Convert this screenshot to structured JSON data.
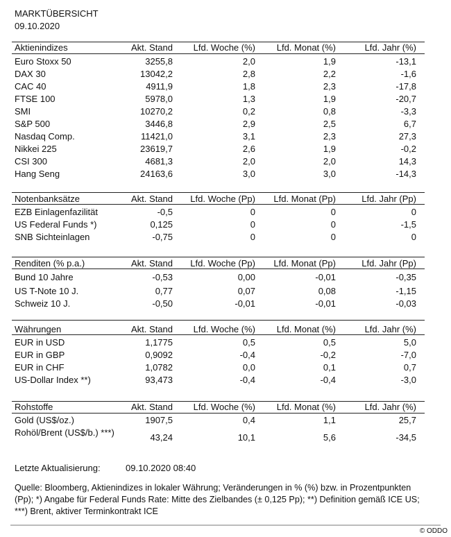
{
  "title": "MARKTÜBERSICHT",
  "date": "09.10.2020",
  "tables": [
    {
      "headers": [
        "Aktienindizes",
        "Akt. Stand",
        "Lfd. Woche (%)",
        "Lfd. Monat (%)",
        "Lfd. Jahr (%)"
      ],
      "rows": [
        [
          "Euro Stoxx 50",
          "3255,8",
          "2,0",
          "1,9",
          "-13,1"
        ],
        [
          "DAX 30",
          "13042,2",
          "2,8",
          "2,2",
          "-1,6"
        ],
        [
          "CAC 40",
          "4911,9",
          "1,8",
          "2,3",
          "-17,8"
        ],
        [
          "FTSE 100",
          "5978,0",
          "1,3",
          "1,9",
          "-20,7"
        ],
        [
          "SMI",
          "10270,2",
          "0,2",
          "0,8",
          "-3,3"
        ],
        [
          "S&P 500",
          "3446,8",
          "2,9",
          "2,5",
          "6,7"
        ],
        [
          "Nasdaq Comp.",
          "11421,0",
          "3,1",
          "2,3",
          "27,3"
        ],
        [
          "Nikkei 225",
          "23619,7",
          "2,6",
          "1,9",
          "-0,2"
        ],
        [
          "CSI 300",
          "4681,3",
          "2,0",
          "2,0",
          "14,3"
        ],
        [
          "Hang Seng",
          "24163,6",
          "3,0",
          "3,0",
          "-14,3"
        ]
      ]
    },
    {
      "headers": [
        "Notenbanksätze",
        "Akt. Stand",
        "Lfd. Woche (Pp)",
        "Lfd. Monat (Pp)",
        "Lfd. Jahr (Pp)"
      ],
      "rows": [
        [
          "EZB Einlagenfazilität",
          "-0,5",
          "0",
          "0",
          "0"
        ],
        [
          "US Federal Funds *)",
          "0,125",
          "0",
          "0",
          "-1,5"
        ],
        [
          "SNB Sichteinlagen",
          "-0,75",
          "0",
          "0",
          "0"
        ]
      ]
    },
    {
      "headers": [
        "Renditen (% p.a.)",
        "Akt. Stand",
        "Lfd. Woche (Pp)",
        "Lfd. Monat (Pp)",
        "Lfd. Jahr (Pp)"
      ],
      "rows": [
        [
          "Bund 10 Jahre",
          "-0,53",
          "0,00",
          "-0,01",
          "-0,35"
        ],
        [
          "US T-Note 10 J.",
          "0,77",
          "0,07",
          "0,08",
          "-1,15"
        ],
        [
          "Schweiz 10 J.",
          "-0,50",
          "-0,01",
          "-0,01",
          "-0,03"
        ]
      ]
    },
    {
      "headers": [
        "Währungen",
        "Akt. Stand",
        "Lfd. Woche (%)",
        "Lfd. Monat (%)",
        "Lfd. Jahr (%)"
      ],
      "rows": [
        [
          "EUR in USD",
          "1,1775",
          "0,5",
          "0,5",
          "5,0"
        ],
        [
          "EUR in GBP",
          "0,9092",
          "-0,4",
          "-0,2",
          "-7,0"
        ],
        [
          "EUR in CHF",
          "1,0782",
          "0,0",
          "0,1",
          "0,7"
        ],
        [
          "US-Dollar Index **)",
          "93,473",
          "-0,4",
          "-0,4",
          "-3,0"
        ]
      ]
    },
    {
      "headers": [
        "Rohstoffe",
        "Akt. Stand",
        "Lfd. Woche (%)",
        "Lfd. Monat (%)",
        "Lfd. Jahr (%)"
      ],
      "rows": [
        [
          "Gold (US$/oz.)",
          "1907,5",
          "0,4",
          "1,1",
          "25,7"
        ],
        [
          "Rohöl/Brent (US$/b.) ***)",
          "43,24",
          "10,1",
          "5,6",
          "-34,5"
        ]
      ]
    }
  ],
  "last_update": {
    "label": "Letzte Aktualisierung:",
    "value": "09.10.2020 08:40"
  },
  "source_note": "Quelle: Bloomberg, Aktienindizes in lokaler Währung; Veränderungen in % (%) bzw. in Prozentpunkten (Pp); *) Angabe für Federal Funds Rate: Mitte des Zielbandes (± 0,125 Pp); **) Definition gemäß ICE US; ***) Brent, aktiver Terminkontrakt ICE",
  "copyright": "© ODDO"
}
